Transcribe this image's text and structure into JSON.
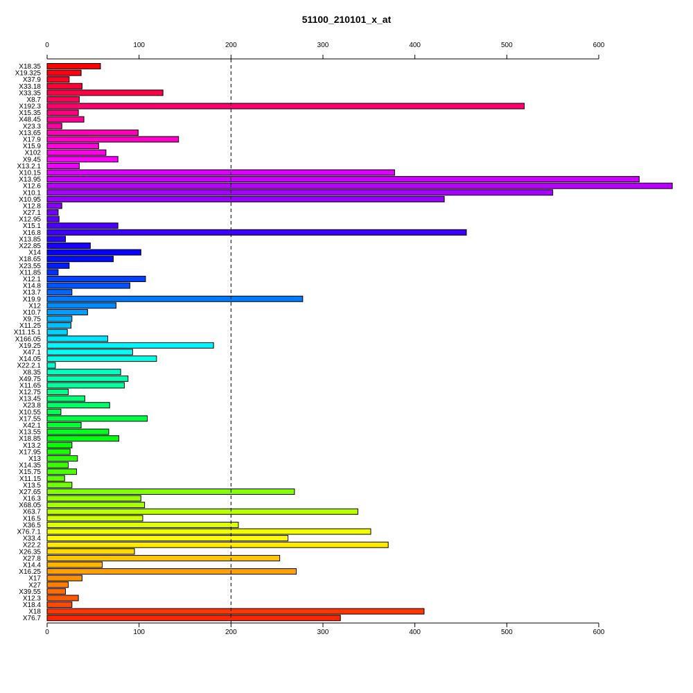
{
  "chart_data": {
    "type": "bar",
    "orientation": "horizontal",
    "title": "51100_210101_x_at",
    "xlim": [
      0,
      680
    ],
    "x_ticks": [
      0,
      100,
      200,
      300,
      400,
      500,
      600
    ],
    "x_tick_labels": [
      "0",
      "100",
      "200",
      "300",
      "400",
      "500",
      "600"
    ],
    "axes": [
      "top",
      "bottom"
    ],
    "reference_line": {
      "x": 200,
      "style": "dashed"
    },
    "grid": false,
    "legend": "none",
    "categories": [
      "X18.35",
      "X19.325",
      "X37.9",
      "X33.18",
      "X33.35",
      "X8.7",
      "X192.3",
      "X15.35",
      "X48.45",
      "X23.3",
      "X13.65",
      "X17.9",
      "X15.9",
      "X102",
      "X9.45",
      "X13.2.1",
      "X10.15",
      "X13.95",
      "X12.6",
      "X10.1",
      "X10.95",
      "X12.8",
      "X27.1",
      "X12.95",
      "X15.1",
      "X16.8",
      "X13.85",
      "X22.85",
      "X14",
      "X18.65",
      "X23.55",
      "X11.85",
      "X12.1",
      "X14.8",
      "X13.7",
      "X19.9",
      "X12",
      "X10.7",
      "X9.75",
      "X11.25",
      "X11.15.1",
      "X166.05",
      "X19.25",
      "X47.1",
      "X14.05",
      "X22.2.1",
      "X8.35",
      "X49.75",
      "X11.65",
      "X12.75",
      "X13.45",
      "X23.8",
      "X10.55",
      "X17.55",
      "X42.1",
      "X13.55",
      "X18.85",
      "X13.2",
      "X17.95",
      "X13",
      "X14.35",
      "X15.75",
      "X11.15",
      "X13.5",
      "X27.65",
      "X16.3",
      "X68.05",
      "X63.7",
      "X16.5",
      "X36.5",
      "X76.7.1",
      "X33.4",
      "X22.2",
      "X26.35",
      "X27.8",
      "X14.4",
      "X16.25",
      "X17",
      "X27",
      "X39.55",
      "X12.3",
      "X18.4",
      "X18",
      "X76.7"
    ],
    "values": [
      58,
      37,
      24,
      38,
      126,
      35,
      519,
      34,
      40,
      16,
      99,
      143,
      56,
      64,
      77,
      35,
      378,
      644,
      680,
      550,
      432,
      16,
      12,
      13,
      77,
      456,
      20,
      47,
      102,
      72,
      24,
      12,
      107,
      90,
      27,
      278,
      75,
      44,
      27,
      26,
      22,
      66,
      181,
      93,
      119,
      9,
      80,
      88,
      84,
      23,
      41,
      68,
      15,
      109,
      37,
      67,
      78,
      27,
      25,
      33,
      23,
      32,
      19,
      27,
      269,
      102,
      106,
      338,
      104,
      208,
      352,
      262,
      371,
      95,
      253,
      60,
      271,
      38,
      23,
      20,
      34,
      27,
      410,
      319
    ],
    "colors": [
      "#FF0000",
      "#FF0012",
      "#FF0024",
      "#FF0036",
      "#FF0048",
      "#FF005A",
      "#FF006C",
      "#FF007E",
      "#FF0090",
      "#FF00A2",
      "#FF00B4",
      "#FF00C6",
      "#FF00D8",
      "#FF00EA",
      "#FF00FC",
      "#F000FF",
      "#DE00FF",
      "#CC00FF",
      "#BA00FF",
      "#A800FF",
      "#9600FF",
      "#8400FF",
      "#7200FF",
      "#6000FF",
      "#4E00FF",
      "#3C00FF",
      "#2A00FF",
      "#1800FF",
      "#0600FF",
      "#000CFF",
      "#001EFF",
      "#0030FF",
      "#0042FF",
      "#0054FF",
      "#0066FF",
      "#0078FF",
      "#008AFF",
      "#009CFF",
      "#00AEFF",
      "#00C0FF",
      "#00D2FF",
      "#00E4FF",
      "#00F6FF",
      "#00FFF6",
      "#00FFE4",
      "#00FFD2",
      "#00FFC0",
      "#00FFAE",
      "#00FF9C",
      "#00FF8A",
      "#00FF78",
      "#00FF66",
      "#00FF54",
      "#00FF42",
      "#00FF30",
      "#00FF1E",
      "#00FF0C",
      "#06FF00",
      "#18FF00",
      "#2AFF00",
      "#3CFF00",
      "#4EFF00",
      "#60FF00",
      "#72FF00",
      "#84FF00",
      "#96FF00",
      "#A8FF00",
      "#BAFF00",
      "#CCFF00",
      "#DEFF00",
      "#F0FF00",
      "#FFFC00",
      "#FFEA00",
      "#FFD800",
      "#FFC600",
      "#FFB400",
      "#FFA200",
      "#FF9000",
      "#FF7E00",
      "#FF6C00",
      "#FF5A00",
      "#FF4800",
      "#FF3600",
      "#FF2400"
    ]
  }
}
